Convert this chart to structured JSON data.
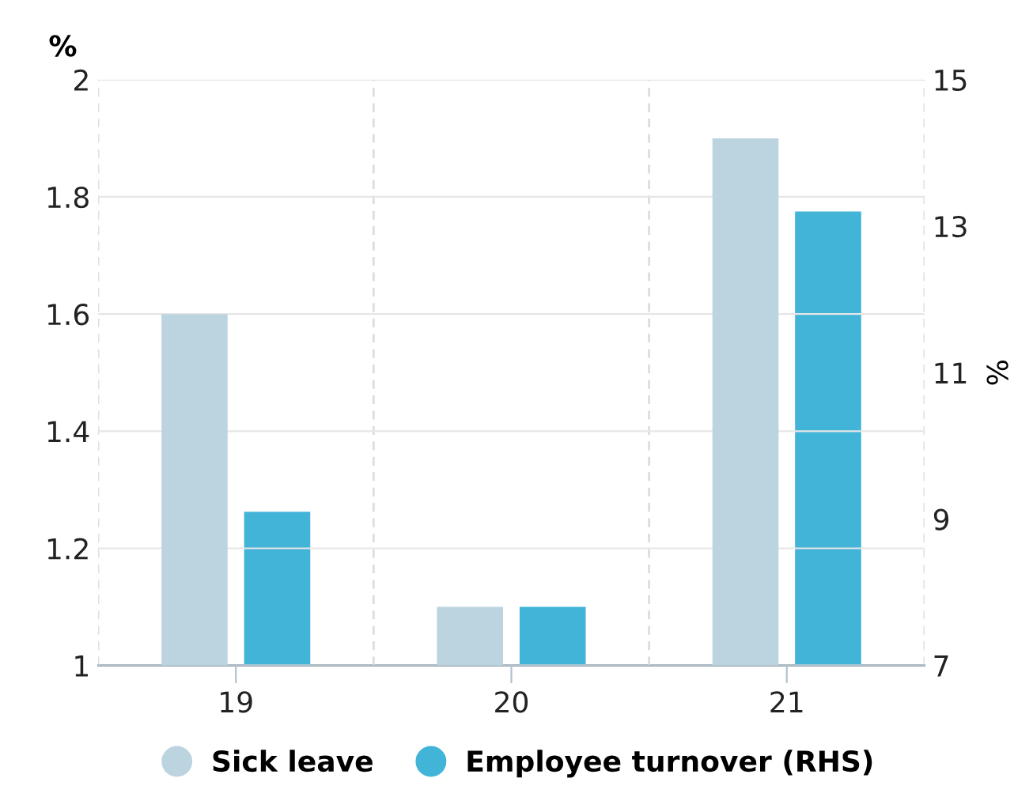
{
  "chart_data": {
    "type": "bar",
    "ylabel": "%",
    "y2label": "%",
    "categories": [
      "19",
      "20",
      "21"
    ],
    "series": [
      {
        "name": "Sick leave",
        "color": "#bcd4e0",
        "values": [
          1.6,
          1.1,
          1.9
        ]
      },
      {
        "name": "Employee turnover (RHS)",
        "color": "#42b4d8",
        "values": [
          9.1,
          7.8,
          13.2
        ],
        "axis": "y2"
      }
    ],
    "ylim": [
      1,
      2
    ],
    "yticks": [
      1,
      1.2,
      1.4,
      1.6,
      1.8,
      2
    ],
    "y2lim": [
      7,
      15
    ],
    "y2ticks": [
      7,
      9,
      11,
      13,
      15
    ],
    "grid": true,
    "legend": "bottom"
  }
}
